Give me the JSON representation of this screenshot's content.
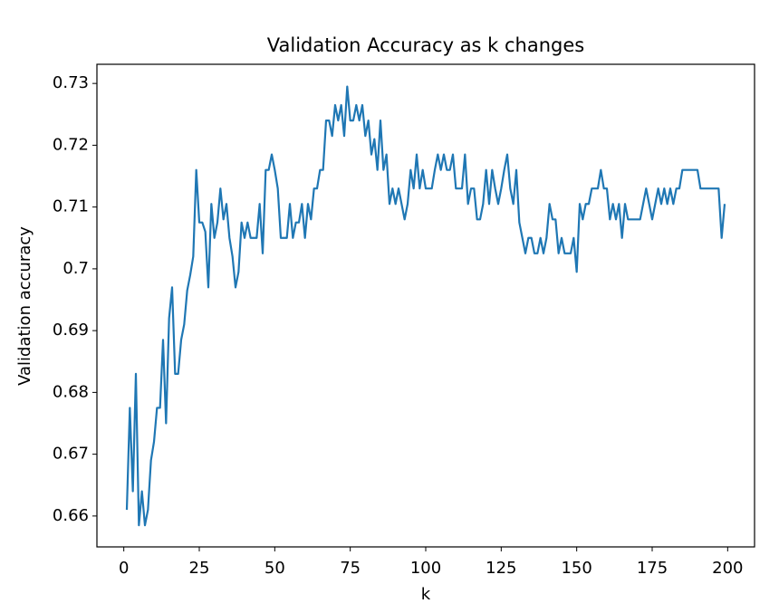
{
  "chart_data": {
    "type": "line",
    "title": "Validation Accuracy as k changes",
    "x_label": "k",
    "y_label": "Validation accuracy",
    "x": [
      1,
      2,
      3,
      4,
      5,
      6,
      7,
      8,
      9,
      10,
      11,
      12,
      13,
      14,
      15,
      16,
      17,
      18,
      19,
      20,
      21,
      22,
      23,
      24,
      25,
      26,
      27,
      28,
      29,
      30,
      31,
      32,
      33,
      34,
      35,
      36,
      37,
      38,
      39,
      40,
      41,
      42,
      43,
      44,
      45,
      46,
      47,
      48,
      49,
      50,
      51,
      52,
      53,
      54,
      55,
      56,
      57,
      58,
      59,
      60,
      61,
      62,
      63,
      64,
      65,
      66,
      67,
      68,
      69,
      70,
      71,
      72,
      73,
      74,
      75,
      76,
      77,
      78,
      79,
      80,
      81,
      82,
      83,
      84,
      85,
      86,
      87,
      88,
      89,
      90,
      91,
      92,
      93,
      94,
      95,
      96,
      97,
      98,
      99,
      100,
      101,
      102,
      103,
      104,
      105,
      106,
      107,
      108,
      109,
      110,
      111,
      112,
      113,
      114,
      115,
      116,
      117,
      118,
      119,
      120,
      121,
      122,
      123,
      124,
      125,
      126,
      127,
      128,
      129,
      130,
      131,
      132,
      133,
      134,
      135,
      136,
      137,
      138,
      139,
      140,
      141,
      142,
      143,
      144,
      145,
      146,
      147,
      148,
      149,
      150,
      151,
      152,
      153,
      154,
      155,
      156,
      157,
      158,
      159,
      160,
      161,
      162,
      163,
      164,
      165,
      166,
      167,
      168,
      169,
      170,
      171,
      172,
      173,
      174,
      175,
      176,
      177,
      178,
      179,
      180,
      181,
      182,
      183,
      184,
      185,
      186,
      187,
      188,
      189,
      190,
      191,
      192,
      193,
      194,
      195,
      196,
      197,
      198,
      199
    ],
    "series": [
      {
        "name": "accuracy",
        "color": "#1f77b4",
        "values": [
          0.661,
          0.6775,
          0.664,
          0.683,
          0.6585,
          0.664,
          0.6585,
          0.661,
          0.669,
          0.672,
          0.6775,
          0.6775,
          0.6885,
          0.675,
          0.692,
          0.697,
          0.683,
          0.683,
          0.6885,
          0.691,
          0.6965,
          0.699,
          0.702,
          0.716,
          0.7075,
          0.7075,
          0.706,
          0.697,
          0.7105,
          0.705,
          0.7075,
          0.713,
          0.708,
          0.7105,
          0.705,
          0.702,
          0.697,
          0.6995,
          0.7075,
          0.705,
          0.7075,
          0.705,
          0.705,
          0.705,
          0.7105,
          0.7025,
          0.716,
          0.716,
          0.7185,
          0.716,
          0.713,
          0.705,
          0.705,
          0.705,
          0.7105,
          0.705,
          0.7075,
          0.7075,
          0.7105,
          0.705,
          0.7105,
          0.708,
          0.713,
          0.713,
          0.716,
          0.716,
          0.724,
          0.724,
          0.7215,
          0.7265,
          0.724,
          0.7265,
          0.7215,
          0.7295,
          0.724,
          0.724,
          0.7265,
          0.724,
          0.7265,
          0.7215,
          0.724,
          0.7185,
          0.721,
          0.716,
          0.724,
          0.716,
          0.7185,
          0.7105,
          0.713,
          0.7105,
          0.713,
          0.7105,
          0.708,
          0.7105,
          0.716,
          0.713,
          0.7185,
          0.713,
          0.716,
          0.713,
          0.713,
          0.713,
          0.716,
          0.7185,
          0.716,
          0.7185,
          0.716,
          0.716,
          0.7185,
          0.713,
          0.713,
          0.713,
          0.7185,
          0.7105,
          0.713,
          0.713,
          0.708,
          0.708,
          0.7105,
          0.716,
          0.7105,
          0.716,
          0.713,
          0.7105,
          0.713,
          0.716,
          0.7185,
          0.713,
          0.7105,
          0.716,
          0.7075,
          0.705,
          0.7025,
          0.705,
          0.705,
          0.7025,
          0.7025,
          0.705,
          0.7025,
          0.705,
          0.7105,
          0.708,
          0.708,
          0.7025,
          0.705,
          0.7025,
          0.7025,
          0.7025,
          0.705,
          0.6995,
          0.7105,
          0.708,
          0.7105,
          0.7105,
          0.713,
          0.713,
          0.713,
          0.716,
          0.713,
          0.713,
          0.708,
          0.7105,
          0.708,
          0.7105,
          0.705,
          0.7105,
          0.708,
          0.708,
          0.708,
          0.708,
          0.708,
          0.7105,
          0.713,
          0.7105,
          0.708,
          0.7105,
          0.713,
          0.7105,
          0.713,
          0.7105,
          0.713,
          0.7105,
          0.713,
          0.713,
          0.716,
          0.716,
          0.716,
          0.716,
          0.716,
          0.716,
          0.713,
          0.713,
          0.713,
          0.713,
          0.713,
          0.713,
          0.713,
          0.705,
          0.7105
        ]
      }
    ],
    "xlim": [
      -8.9,
      208.9
    ],
    "ylim": [
      0.655,
      0.7331
    ],
    "xticks": [
      0,
      25,
      50,
      75,
      100,
      125,
      150,
      175,
      200
    ],
    "yticks": [
      0.66,
      0.67,
      0.68,
      0.69,
      0.7,
      {
        "value": 0.7,
        "label": "0.70"
      },
      0.71,
      0.72,
      0.73
    ]
  }
}
